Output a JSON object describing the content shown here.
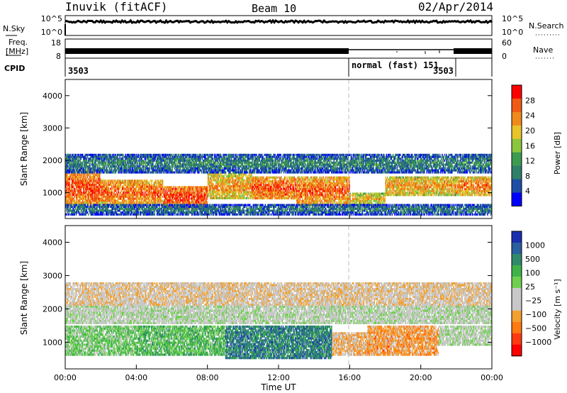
{
  "header": {
    "station": "Inuvik (fitACF)",
    "beam": "Beam 10",
    "date": "02/Apr/2014"
  },
  "top_panel": {
    "nsky_label": "N.Sky",
    "nsky_ticks": [
      "10^5",
      "10^0"
    ],
    "nsearch_label": "N.Search",
    "nsearch_ticks": [
      "10^5",
      "10^0"
    ],
    "freq_label_1": "Freq.",
    "freq_label_2": "[MHz]",
    "freq_ticks": [
      "18",
      "8"
    ],
    "nave_label": "Nave",
    "nave_ticks": [
      "60",
      "0"
    ],
    "cpid_label": "CPID",
    "cpid_segments": [
      {
        "label": "3503",
        "start_hour": 0,
        "end_hour": 16
      },
      {
        "label": "normal (fast) 151",
        "start_hour": 16,
        "end_hour": 22.6
      },
      {
        "label": "3503",
        "start_hour": 22.6,
        "end_hour": 24
      }
    ]
  },
  "colors": {
    "power_scale": [
      "#0000ff",
      "#1e4fa6",
      "#2f7f6a",
      "#3c9b50",
      "#8cc63e",
      "#e8c42a",
      "#f08a1c",
      "#f05a14",
      "#ff0000"
    ],
    "velocity_scale": [
      "#1a2fae",
      "#2a5fa0",
      "#2f8a6a",
      "#3fb34a",
      "#6fd050",
      "#c8c8c8",
      "#c8c8c8",
      "#f2a030",
      "#ff7a10",
      "#ff3a10",
      "#ff0000"
    ],
    "ground_scatter": "#c8c8c8"
  },
  "chart_data": [
    {
      "type": "heatmap",
      "name": "Power",
      "xlabel": "",
      "ylabel": "Slant Range [km]",
      "x_range_hours": [
        0,
        24
      ],
      "ylim": [
        200,
        4500
      ],
      "yticks": [
        "4000",
        "3000",
        "2000",
        "1000"
      ],
      "colorbar": {
        "label": "Power [dB]",
        "ticks": [
          "28",
          "24",
          "20",
          "16",
          "12",
          "8",
          "4"
        ],
        "range": [
          0,
          30
        ]
      },
      "bands": [
        {
          "x0": 0,
          "x1": 2,
          "y0": 600,
          "y1": 1700,
          "value": 26
        },
        {
          "x0": 2,
          "x1": 5.5,
          "y0": 600,
          "y1": 1400,
          "value": 25
        },
        {
          "x0": 5.5,
          "x1": 8,
          "y0": 500,
          "y1": 1200,
          "value": 27
        },
        {
          "x0": 8,
          "x1": 10.5,
          "y0": 800,
          "y1": 1600,
          "value": 22
        },
        {
          "x0": 10.5,
          "x1": 13,
          "y0": 800,
          "y1": 1500,
          "value": 26
        },
        {
          "x0": 13,
          "x1": 16,
          "y0": 600,
          "y1": 1500,
          "value": 25
        },
        {
          "x0": 16,
          "x1": 18,
          "y0": 600,
          "y1": 1000,
          "value": 20
        },
        {
          "x0": 18,
          "x1": 22,
          "y0": 900,
          "y1": 1500,
          "value": 22
        },
        {
          "x0": 22,
          "x1": 24,
          "y0": 900,
          "y1": 1500,
          "value": 24
        },
        {
          "x0": 0,
          "x1": 24,
          "y0": 1600,
          "y1": 2200,
          "value": 10
        },
        {
          "x0": 0,
          "x1": 24,
          "y0": 300,
          "y1": 650,
          "value": 9
        }
      ]
    },
    {
      "type": "heatmap",
      "name": "Velocity",
      "xlabel": "Time UT",
      "ylabel": "Slant Range [km]",
      "x_range_hours": [
        0,
        24
      ],
      "xticks": [
        "00:00",
        "04:00",
        "08:00",
        "12:00",
        "16:00",
        "20:00",
        "00:00"
      ],
      "ylim": [
        200,
        4500
      ],
      "yticks": [
        "4000",
        "3000",
        "2000",
        "1000"
      ],
      "colorbar": {
        "label": "Velocity [m s⁻¹]",
        "ticks": [
          "1000",
          "500",
          "100",
          "25",
          "−25",
          "−100",
          "−500",
          "−1000"
        ]
      },
      "bands": [
        {
          "x0": 0,
          "x1": 24,
          "y0": 1550,
          "y1": 2100,
          "value": 0
        },
        {
          "x0": 0,
          "x1": 4,
          "y0": 600,
          "y1": 1500,
          "value": 200
        },
        {
          "x0": 4,
          "x1": 9,
          "y0": 600,
          "y1": 1500,
          "value": 300
        },
        {
          "x0": 9,
          "x1": 15,
          "y0": 500,
          "y1": 1500,
          "value": 600
        },
        {
          "x0": 15,
          "x1": 17,
          "y0": 600,
          "y1": 1300,
          "value": -300
        },
        {
          "x0": 17,
          "x1": 21,
          "y0": 600,
          "y1": 1500,
          "value": -400
        },
        {
          "x0": 21,
          "x1": 24,
          "y0": 900,
          "y1": 1500,
          "value": 0
        },
        {
          "x0": 0,
          "x1": 24,
          "y0": 2100,
          "y1": 2800,
          "value": -200
        }
      ]
    }
  ]
}
